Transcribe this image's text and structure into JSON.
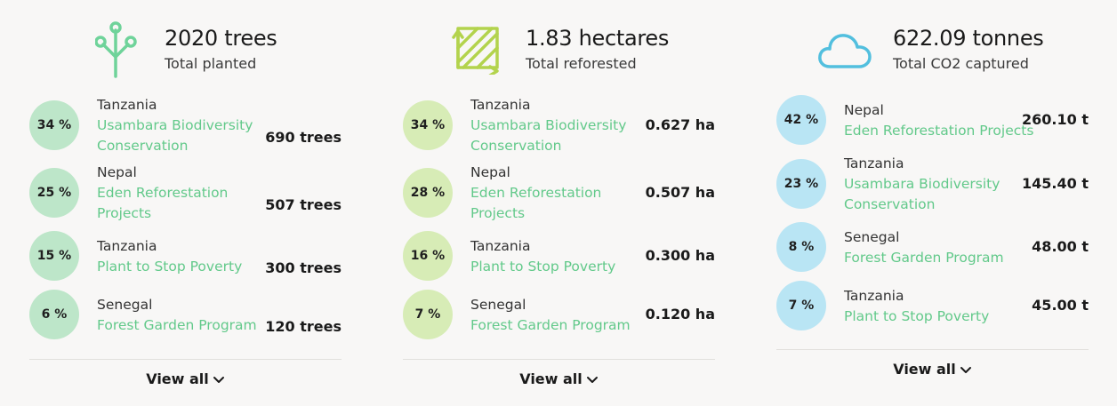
{
  "colors": {
    "project_link": "#62c98a",
    "trees_badge": "#bde6c9",
    "hectares_badge": "#d7ecb6",
    "co2_badge": "#b9e5f4",
    "trees_icon": "#6fd39a",
    "hectares_icon": "#b3d34d",
    "co2_icon": "#52bfde"
  },
  "trees": {
    "icon": "tree-sprout-icon",
    "value": "2020 trees",
    "caption": "Total planted",
    "items": [
      {
        "percent": "34 %",
        "country": "Tanzania",
        "project": "Usambara Biodiversity Conservation",
        "amount": "690 trees"
      },
      {
        "percent": "25 %",
        "country": "Nepal",
        "project": "Eden Reforestation Projects",
        "amount": "507 trees"
      },
      {
        "percent": "15 %",
        "country": "Tanzania",
        "project": "Plant to Stop Poverty",
        "amount": "300 trees"
      },
      {
        "percent": "6 %",
        "country": "Senegal",
        "project": "Forest Garden Program",
        "amount": "120 trees"
      }
    ],
    "view_all": "View all"
  },
  "hectares": {
    "icon": "hatched-area-expand-icon",
    "value": "1.83 hectares",
    "caption": "Total reforested",
    "items": [
      {
        "percent": "34 %",
        "country": "Tanzania",
        "project": "Usambara Biodiversity Conservation",
        "amount": "0.627 ha"
      },
      {
        "percent": "28 %",
        "country": "Nepal",
        "project": "Eden Reforestation Projects",
        "amount": "0.507 ha"
      },
      {
        "percent": "16 %",
        "country": "Tanzania",
        "project": "Plant to Stop Poverty",
        "amount": "0.300 ha"
      },
      {
        "percent": "7 %",
        "country": "Senegal",
        "project": "Forest Garden Program",
        "amount": "0.120 ha"
      }
    ],
    "view_all": "View all"
  },
  "co2": {
    "icon": "cloud-icon",
    "value": "622.09 tonnes",
    "caption": "Total CO2 captured",
    "items": [
      {
        "percent": "42 %",
        "country": "Nepal",
        "project": "Eden Reforestation Projects",
        "amount": "260.10 t"
      },
      {
        "percent": "23 %",
        "country": "Tanzania",
        "project": "Usambara Biodiversity Conservation",
        "amount": "145.40 t"
      },
      {
        "percent": "8 %",
        "country": "Senegal",
        "project": "Forest Garden Program",
        "amount": "48.00 t"
      },
      {
        "percent": "7 %",
        "country": "Tanzania",
        "project": "Plant to Stop Poverty",
        "amount": "45.00 t"
      }
    ],
    "view_all": "View all"
  }
}
